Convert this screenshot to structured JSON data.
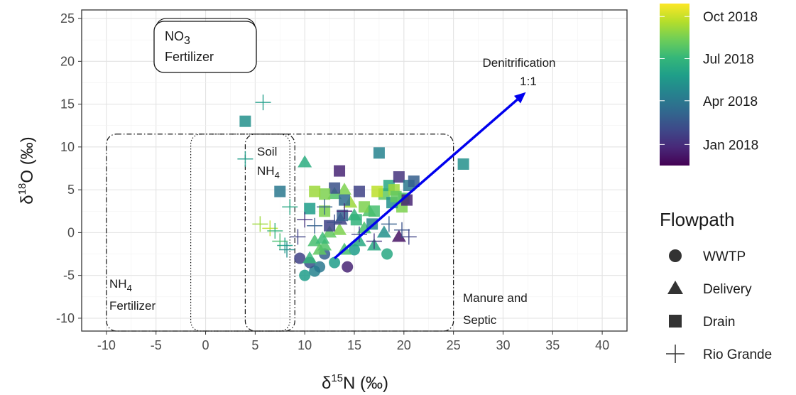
{
  "chart_data": {
    "type": "scatter",
    "xlabel": {
      "prefix": "δ",
      "sup": "15",
      "main": "N (‰)"
    },
    "ylabel": {
      "prefix": "δ",
      "sup": "18",
      "main": "O (‰)"
    },
    "xlim": [
      -12.5,
      42.5
    ],
    "ylim": [
      -11.5,
      26
    ],
    "xticks": [
      -10,
      -5,
      0,
      5,
      10,
      15,
      20,
      25,
      30,
      35,
      40
    ],
    "yticks": [
      -10,
      -5,
      0,
      5,
      10,
      15,
      20,
      25
    ],
    "grid": true,
    "colorbar": {
      "title": "",
      "labels": [
        "Oct 2018",
        "Jul 2018",
        "Apr 2018",
        "Jan 2018"
      ],
      "label_positions": [
        0.92,
        0.66,
        0.4,
        0.13
      ],
      "colors": [
        "#fde725",
        "#b5de2b",
        "#6ece58",
        "#35b779",
        "#1f9e89",
        "#26828e",
        "#31688e",
        "#3e4989",
        "#482878",
        "#440154"
      ]
    },
    "legend": {
      "title": "Flowpath",
      "placement": "right",
      "items": [
        {
          "label": "WWTP",
          "shape": "circle"
        },
        {
          "label": "Delivery",
          "shape": "triangle"
        },
        {
          "label": "Drain",
          "shape": "square"
        },
        {
          "label": "Rio Grande",
          "shape": "cross"
        }
      ]
    },
    "regions": [
      {
        "name": "nh4_fertilizer",
        "x": [
          -10,
          9
        ],
        "y": [
          -11.5,
          11.5
        ],
        "style": "dashdot"
      },
      {
        "name": "soil_nh4",
        "x": [
          -1.5,
          8.5
        ],
        "y": [
          -11.5,
          11.5
        ],
        "style": "dotted"
      },
      {
        "name": "manure_septic",
        "x": [
          4,
          25
        ],
        "y": [
          -11.5,
          11.5
        ],
        "style": "dashdot"
      },
      {
        "name": "nitrate_fertilizer",
        "x": [
          -5,
          5
        ],
        "y": [
          19,
          25
        ],
        "style": "solid"
      }
    ],
    "annotations": {
      "nitrate_fertilizer": {
        "line1_main": "NO",
        "line1_sub": "3",
        "line2": "Fertilizer",
        "x": -4.5,
        "y": 23
      },
      "soil_nh4": {
        "line1": "Soil",
        "line2_main": "NH",
        "line2_sub": "4",
        "x": 5.3,
        "y": 9.8
      },
      "nh4_fertilizer": {
        "line1_main": "NH",
        "line1_sub": "4",
        "line2": "Fertilizer",
        "x": -9.5,
        "y": -6.7
      },
      "manure_septic": {
        "line1": "Manure and",
        "line2": "Septic",
        "x": 26,
        "y": -8.8
      },
      "denitrification": {
        "line1": "Denitrification",
        "line2": "1:1",
        "x": 32,
        "y": 20
      }
    },
    "arrow": {
      "from": [
        13,
        -3
      ],
      "to": [
        32.3,
        16.4
      ],
      "color": "#0000ee"
    },
    "series": [
      {
        "shape": "circle",
        "points": [
          [
            10,
            -5,
            0.55
          ],
          [
            11,
            -4.5,
            0.45
          ],
          [
            14.3,
            -4,
            0.1
          ],
          [
            18.3,
            -2.5,
            0.6
          ],
          [
            10.5,
            -3.5,
            0.25
          ],
          [
            13,
            -3.5,
            0.55
          ],
          [
            11.5,
            -4,
            0.4
          ],
          [
            15,
            -2,
            0.55
          ],
          [
            12,
            -2.5,
            0.3
          ],
          [
            9.5,
            -3,
            0.2
          ]
        ]
      },
      {
        "shape": "triangle",
        "points": [
          [
            10,
            8.2,
            0.62
          ],
          [
            11,
            -1,
            0.7
          ],
          [
            11.5,
            -2,
            0.75
          ],
          [
            12,
            -1.5,
            0.72
          ],
          [
            13,
            4.5,
            0.72
          ],
          [
            14,
            5,
            0.8
          ],
          [
            15,
            2,
            0.65
          ],
          [
            16,
            0.5,
            0.7
          ],
          [
            17,
            -1.5,
            0.6
          ],
          [
            18,
            0,
            0.5
          ],
          [
            19.5,
            -0.5,
            0.05
          ],
          [
            13.5,
            0.3,
            0.8
          ],
          [
            14,
            -2,
            0.7
          ],
          [
            10.5,
            -3,
            0.66
          ],
          [
            12.5,
            0,
            0.75
          ],
          [
            15.5,
            -1,
            0.6
          ],
          [
            16.5,
            2.5,
            0.72
          ],
          [
            11.8,
            -0.7,
            0.68
          ],
          [
            14.6,
            3.5,
            0.85
          ],
          [
            13.6,
            1.5,
            0.2
          ]
        ]
      },
      {
        "shape": "square",
        "points": [
          [
            4,
            13,
            0.5
          ],
          [
            7.5,
            4.8,
            0.4
          ],
          [
            10.5,
            2.8,
            0.55
          ],
          [
            13.5,
            7.2,
            0.1
          ],
          [
            13,
            5.2,
            0.25
          ],
          [
            12,
            4.5,
            0.8
          ],
          [
            14,
            3.8,
            0.35
          ],
          [
            15.5,
            4.8,
            0.2
          ],
          [
            16,
            3,
            0.8
          ],
          [
            17,
            2.5,
            0.7
          ],
          [
            17.5,
            9.3,
            0.45
          ],
          [
            18,
            4.5,
            0.75
          ],
          [
            18.5,
            5.5,
            0.6
          ],
          [
            19,
            5,
            0.85
          ],
          [
            19.5,
            6.5,
            0.15
          ],
          [
            20,
            4,
            0.7
          ],
          [
            20.5,
            5.5,
            0.4
          ],
          [
            21,
            6,
            0.3
          ],
          [
            19.8,
            3,
            0.8
          ],
          [
            26,
            8,
            0.5
          ],
          [
            12.5,
            0.8,
            0.2
          ],
          [
            15.2,
            1.5,
            0.65
          ],
          [
            18.8,
            3.5,
            0.5
          ],
          [
            13.8,
            2,
            0.3
          ],
          [
            11,
            4.8,
            0.85
          ],
          [
            16.8,
            1,
            0.45
          ],
          [
            12,
            2.5,
            0.8
          ],
          [
            20.3,
            3.8,
            0.1
          ],
          [
            17.3,
            4.8,
            0.9
          ],
          [
            19.2,
            4.2,
            0.75
          ]
        ]
      },
      {
        "shape": "cross",
        "points": [
          [
            5.8,
            15.2,
            0.55
          ],
          [
            4,
            8.6,
            0.55
          ],
          [
            5.5,
            1,
            0.85
          ],
          [
            6.5,
            0.5,
            0.9
          ],
          [
            7.5,
            -1,
            0.7
          ],
          [
            8,
            -1.5,
            0.55
          ],
          [
            8.5,
            3,
            0.6
          ],
          [
            9.3,
            -0.5,
            0.2
          ],
          [
            10,
            1.5,
            0.15
          ],
          [
            12,
            3,
            0.3
          ],
          [
            13,
            1.2,
            0.25
          ],
          [
            14,
            2.5,
            0.1
          ],
          [
            17,
            -1,
            0.15
          ],
          [
            18.5,
            1,
            0.3
          ],
          [
            20.5,
            -0.5,
            0.2
          ],
          [
            7,
            0.2,
            0.65
          ],
          [
            8.2,
            -2,
            0.5
          ],
          [
            11,
            0.8,
            0.3
          ],
          [
            15.5,
            -0.2,
            0.2
          ],
          [
            19.8,
            0.3,
            0.25
          ]
        ]
      }
    ]
  }
}
